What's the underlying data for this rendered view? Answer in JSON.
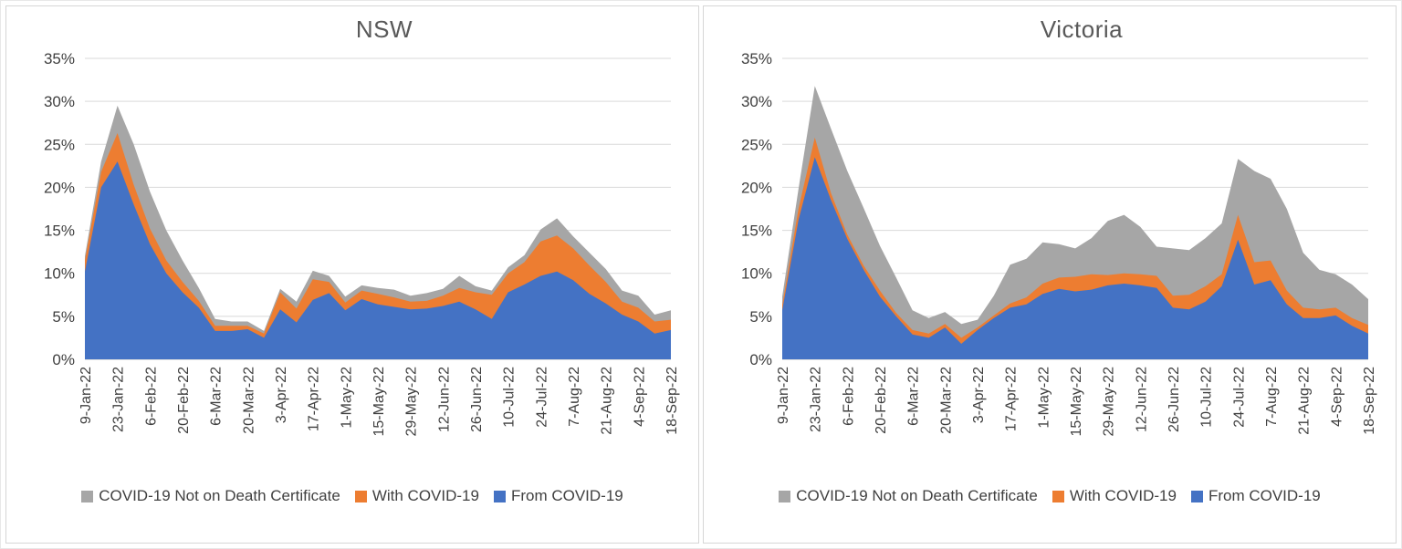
{
  "chart_data": [
    {
      "type": "area",
      "stacked": true,
      "title": "NSW",
      "ylim": [
        0,
        35
      ],
      "y_tick_step": 5,
      "y_tick_labels": [
        "0%",
        "5%",
        "10%",
        "15%",
        "20%",
        "25%",
        "30%",
        "35%"
      ],
      "x_tick_every": 2,
      "grid": true,
      "legend_position": "bottom",
      "legend_order_note": "legend shown top-series-first: gray, orange, blue",
      "x": [
        "9-Jan-22",
        "16-Jan-22",
        "23-Jan-22",
        "30-Jan-22",
        "6-Feb-22",
        "13-Feb-22",
        "20-Feb-22",
        "27-Feb-22",
        "6-Mar-22",
        "13-Mar-22",
        "20-Mar-22",
        "27-Mar-22",
        "3-Apr-22",
        "10-Apr-22",
        "17-Apr-22",
        "24-Apr-22",
        "1-May-22",
        "8-May-22",
        "15-May-22",
        "22-May-22",
        "29-May-22",
        "5-Jun-22",
        "12-Jun-22",
        "19-Jun-22",
        "26-Jun-22",
        "3-Jul-22",
        "10-Jul-22",
        "17-Jul-22",
        "24-Jul-22",
        "31-Jul-22",
        "7-Aug-22",
        "14-Aug-22",
        "21-Aug-22",
        "28-Aug-22",
        "4-Sep-22",
        "11-Sep-22",
        "18-Sep-22"
      ],
      "series": [
        {
          "name": "From COVID-19",
          "color": "#4472C4",
          "values": [
            10.2,
            20.0,
            23.0,
            18.0,
            13.4,
            10.0,
            7.8,
            6.0,
            3.3,
            3.3,
            3.5,
            2.5,
            5.8,
            4.3,
            6.9,
            7.7,
            5.7,
            7.0,
            6.4,
            6.1,
            5.8,
            5.9,
            6.2,
            6.7,
            5.8,
            4.7,
            7.8,
            8.7,
            9.7,
            10.2,
            9.2,
            7.6,
            6.5,
            5.2,
            4.4,
            3.0,
            3.4
          ]
        },
        {
          "name": "With COVID-19",
          "color": "#ED7D31",
          "values": [
            1.3,
            1.8,
            3.3,
            2.3,
            1.8,
            1.5,
            1.2,
            0.8,
            0.6,
            0.6,
            0.4,
            0.5,
            2.0,
            1.6,
            2.4,
            1.3,
            0.9,
            1.0,
            1.2,
            1.1,
            0.9,
            0.9,
            1.2,
            1.6,
            2.0,
            2.8,
            2.2,
            2.6,
            4.0,
            4.2,
            3.7,
            3.3,
            2.5,
            1.5,
            1.6,
            1.4,
            1.2
          ]
        },
        {
          "name": "COVID-19 Not on Death Certificate",
          "color": "#A6A6A6",
          "values": [
            0.5,
            1.2,
            3.2,
            4.7,
            4.3,
            3.5,
            2.5,
            1.5,
            0.8,
            0.5,
            0.5,
            0.3,
            0.4,
            0.8,
            1.0,
            0.7,
            0.7,
            0.6,
            0.7,
            0.9,
            0.7,
            0.9,
            0.8,
            1.4,
            0.7,
            0.5,
            0.7,
            0.8,
            1.4,
            2.0,
            1.4,
            1.5,
            1.5,
            1.3,
            1.4,
            0.8,
            1.1
          ]
        }
      ]
    },
    {
      "type": "area",
      "stacked": true,
      "title": "Victoria",
      "ylim": [
        0,
        35
      ],
      "y_tick_step": 5,
      "y_tick_labels": [
        "0%",
        "5%",
        "10%",
        "15%",
        "20%",
        "25%",
        "30%",
        "35%"
      ],
      "x_tick_every": 2,
      "grid": true,
      "legend_position": "bottom",
      "legend_order_note": "legend shown top-series-first: gray, orange, blue",
      "x": [
        "9-Jan-22",
        "16-Jan-22",
        "23-Jan-22",
        "30-Jan-22",
        "6-Feb-22",
        "13-Feb-22",
        "20-Feb-22",
        "27-Feb-22",
        "6-Mar-22",
        "13-Mar-22",
        "20-Mar-22",
        "27-Mar-22",
        "3-Apr-22",
        "10-Apr-22",
        "17-Apr-22",
        "24-Apr-22",
        "1-May-22",
        "8-May-22",
        "15-May-22",
        "22-May-22",
        "29-May-22",
        "5-Jun-22",
        "12-Jun-22",
        "19-Jun-22",
        "26-Jun-22",
        "3-Jul-22",
        "10-Jul-22",
        "17-Jul-22",
        "24-Jul-22",
        "31-Jul-22",
        "7-Aug-22",
        "14-Aug-22",
        "21-Aug-22",
        "28-Aug-22",
        "4-Sep-22",
        "11-Sep-22",
        "18-Sep-22"
      ],
      "series": [
        {
          "name": "From COVID-19",
          "color": "#4472C4",
          "values": [
            5.7,
            16.2,
            23.5,
            18.5,
            14.0,
            10.4,
            7.3,
            5.0,
            2.9,
            2.5,
            3.7,
            1.8,
            3.4,
            4.8,
            6.0,
            6.4,
            7.6,
            8.2,
            7.9,
            8.1,
            8.6,
            8.8,
            8.6,
            8.3,
            6.0,
            5.8,
            6.7,
            8.5,
            13.9,
            8.7,
            9.2,
            6.4,
            4.8,
            4.8,
            5.1,
            3.9,
            3.0
          ]
        },
        {
          "name": "With COVID-19",
          "color": "#ED7D31",
          "values": [
            0.6,
            1.3,
            2.3,
            0.8,
            0.5,
            0.5,
            0.7,
            0.4,
            0.5,
            0.5,
            0.4,
            0.7,
            0.3,
            0.3,
            0.5,
            0.8,
            1.2,
            1.3,
            1.7,
            1.8,
            1.2,
            1.2,
            1.3,
            1.4,
            1.4,
            1.7,
            1.8,
            1.4,
            2.9,
            2.6,
            2.3,
            1.6,
            1.2,
            1.0,
            0.9,
            0.9,
            1.0
          ]
        },
        {
          "name": "COVID-19 Not on Death Certificate",
          "color": "#A6A6A6",
          "values": [
            1.0,
            2.3,
            6.0,
            7.5,
            7.4,
            6.7,
            5.2,
            4.1,
            2.3,
            1.8,
            1.4,
            1.6,
            0.9,
            2.3,
            4.5,
            4.5,
            4.8,
            3.9,
            3.3,
            4.2,
            6.3,
            6.8,
            5.5,
            3.4,
            5.5,
            5.2,
            5.6,
            5.9,
            6.5,
            10.6,
            9.5,
            9.5,
            6.4,
            4.6,
            3.9,
            3.9,
            3.0
          ]
        }
      ]
    }
  ],
  "colors": {
    "from_covid": "#4472C4",
    "with_covid": "#ED7D31",
    "not_on_certificate": "#A6A6A6",
    "gridline": "#D9D9D9",
    "axis_line": "#BFBFBF",
    "tick_label": "#3F3F3F",
    "title": "#595959"
  }
}
